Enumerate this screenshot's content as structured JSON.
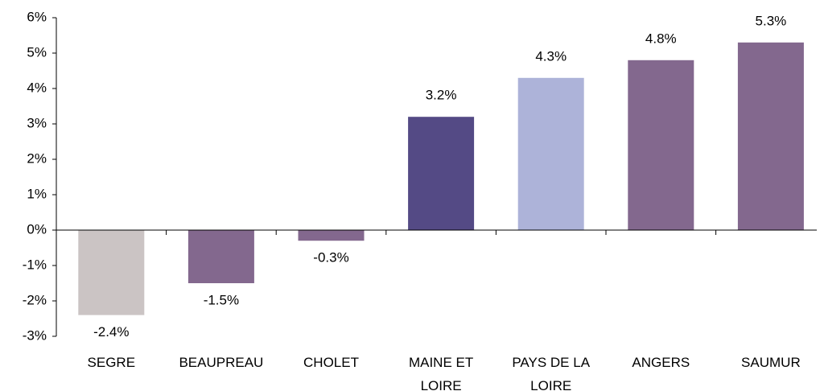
{
  "chart_data": {
    "type": "bar",
    "categories": [
      "SEGRE",
      "BEAUPREAU",
      "CHOLET",
      "MAINE ET LOIRE",
      "PAYS DE LA LOIRE",
      "ANGERS",
      "SAUMUR"
    ],
    "values": [
      -2.4,
      -1.5,
      -0.3,
      3.2,
      4.3,
      4.8,
      5.3
    ],
    "value_labels": [
      "-2.4%",
      "-1.5%",
      "-0.3%",
      "3.2%",
      "4.3%",
      "4.8%",
      "5.3%"
    ],
    "colors": [
      "#cbc4c4",
      "#83688e",
      "#83688e",
      "#544a85",
      "#adb3d9",
      "#83688e",
      "#83688e"
    ],
    "ylim": [
      -3,
      6
    ],
    "yticks": [
      {
        "value": -3,
        "label": "-3%"
      },
      {
        "value": -2,
        "label": "-2%"
      },
      {
        "value": -1,
        "label": "-1%"
      },
      {
        "value": 0,
        "label": "0%"
      },
      {
        "value": 1,
        "label": "1%"
      },
      {
        "value": 2,
        "label": "2%"
      },
      {
        "value": 3,
        "label": "3%"
      },
      {
        "value": 4,
        "label": "4%"
      },
      {
        "value": 5,
        "label": "5%"
      },
      {
        "value": 6,
        "label": "6%"
      }
    ],
    "grid": false
  }
}
